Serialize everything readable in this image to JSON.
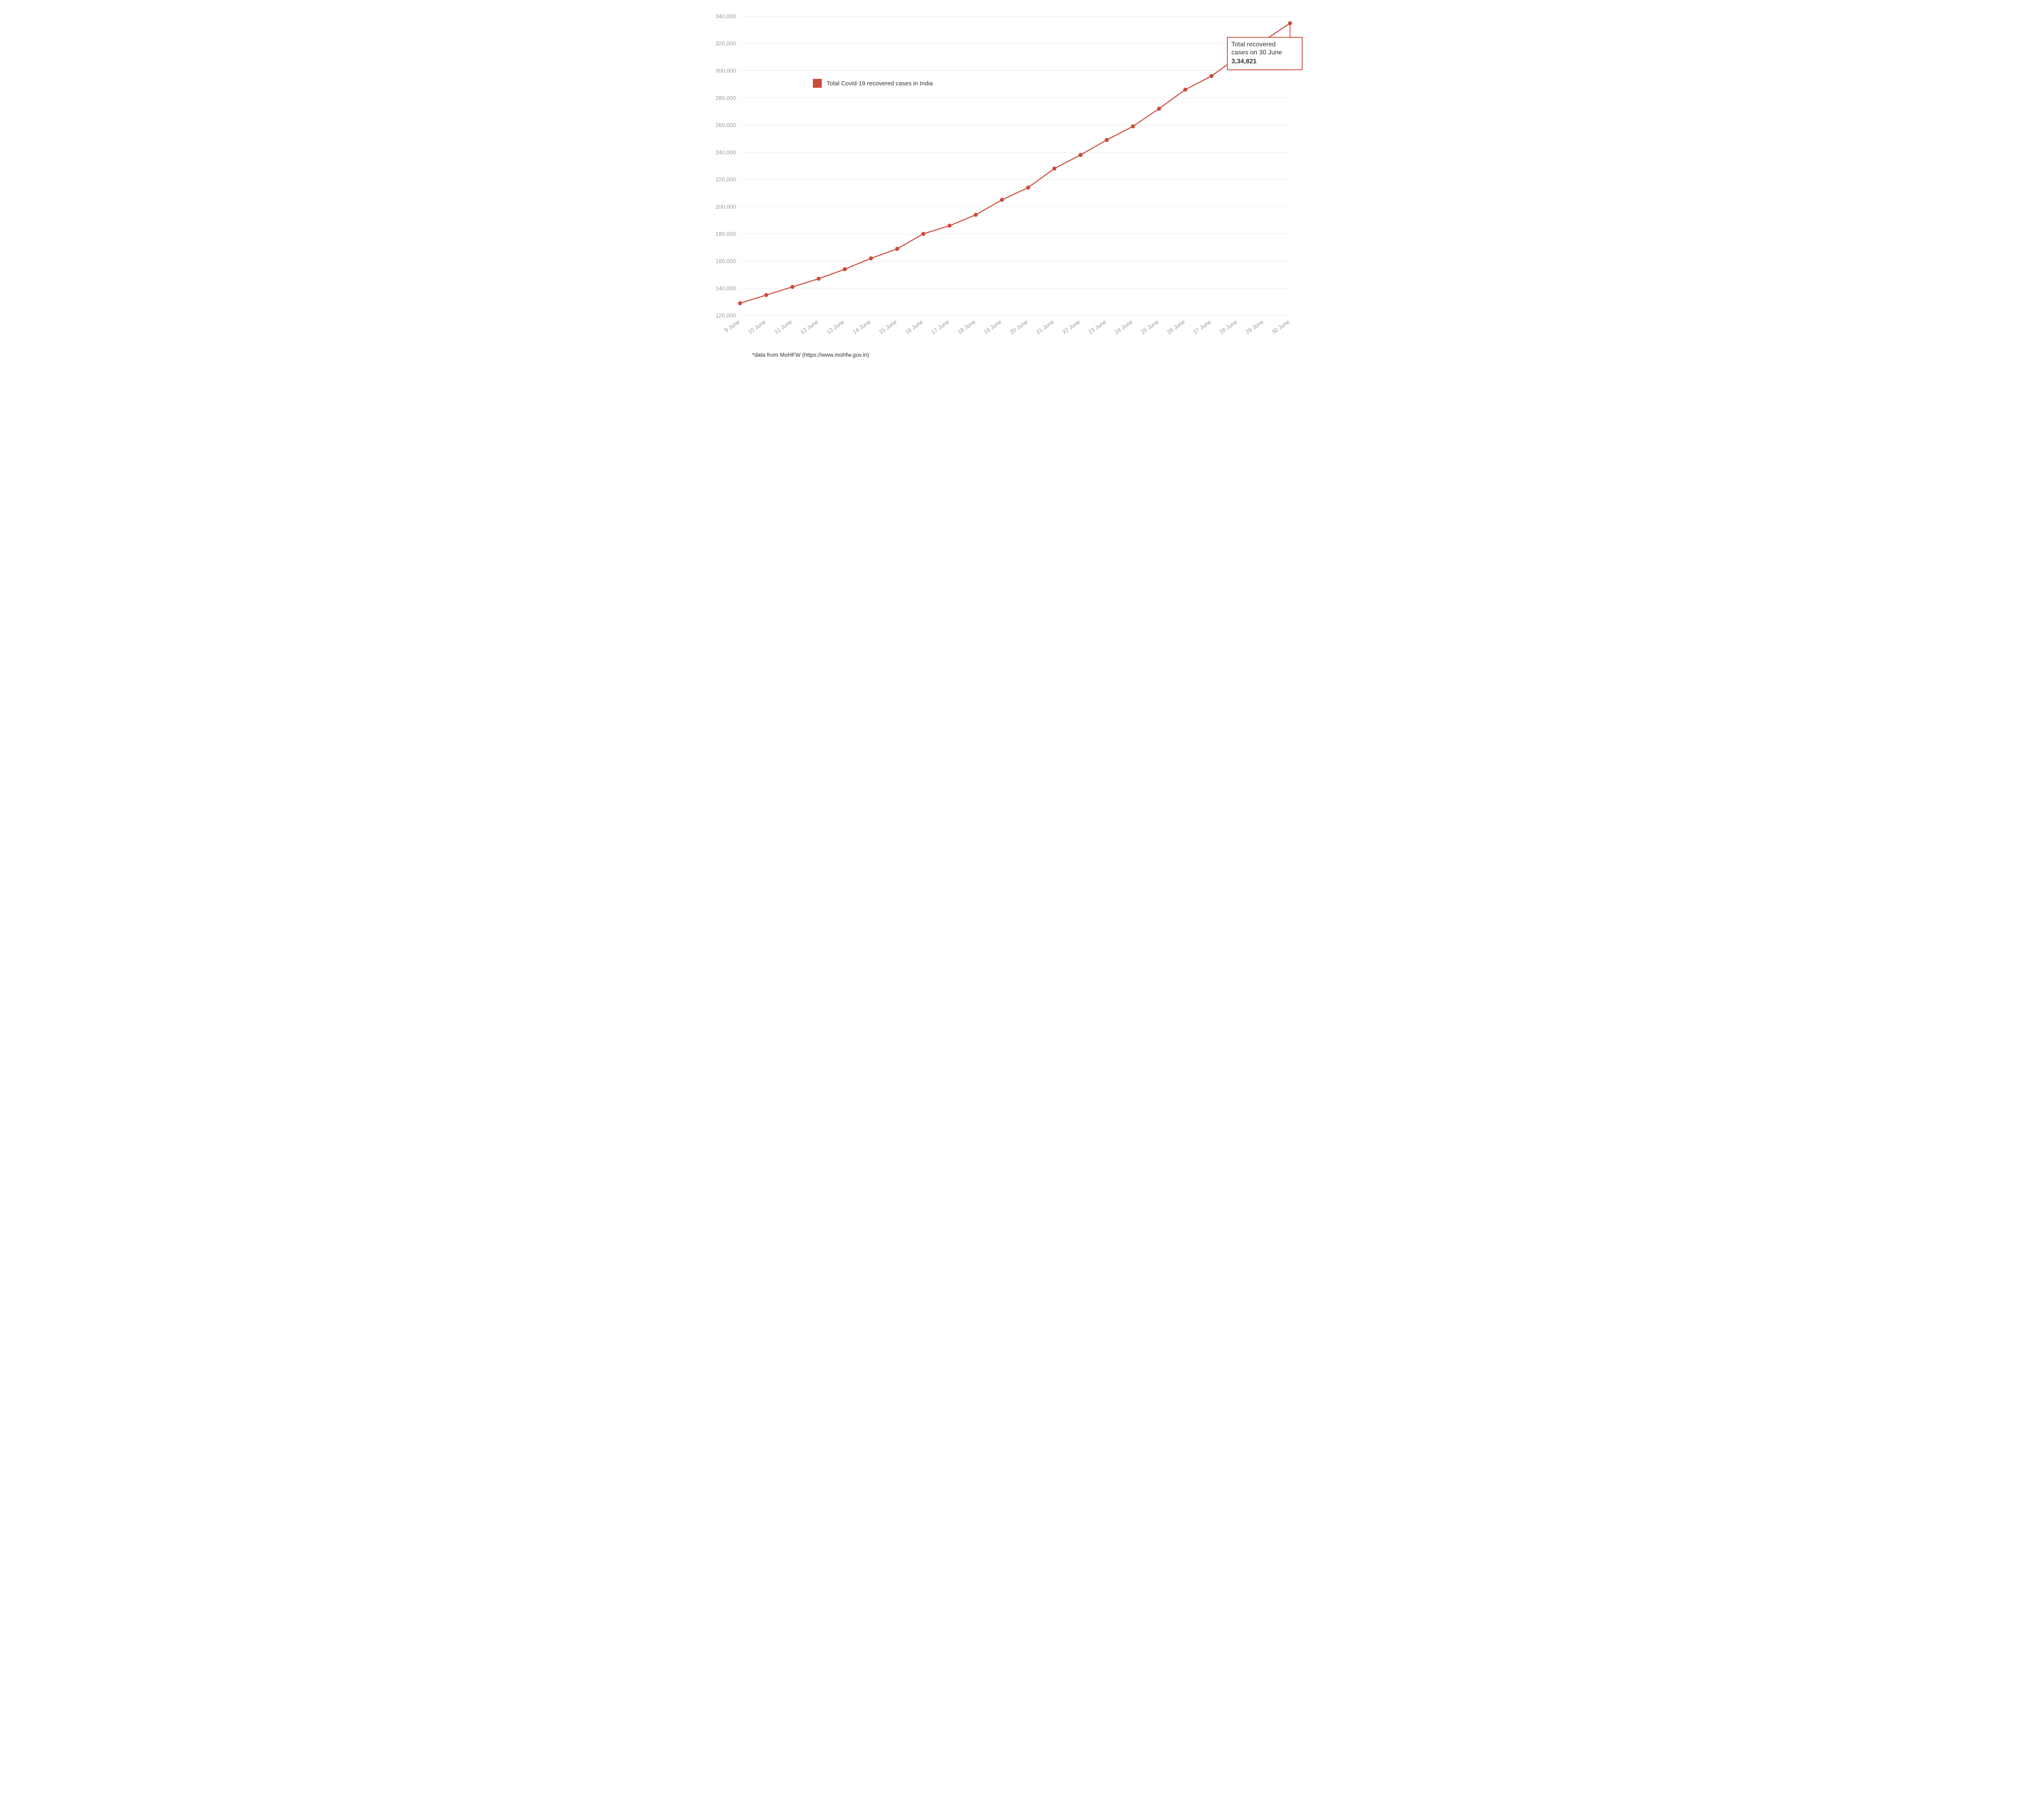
{
  "chart": {
    "type": "line",
    "background_color": "#ffffff",
    "grid_color": "#e6e6e6",
    "axis_label_color": "#9a9a9a",
    "text_color": "#333333",
    "series_color": "#cc4b3b",
    "line_width": 2.5,
    "marker_radius": 5,
    "x_labels": [
      "9 June",
      "10 June",
      "11 June",
      "12 June",
      "13 June",
      "14 June",
      "15 June",
      "16 June",
      "17 June",
      "18 June",
      "19 June",
      "20 June",
      "21 June",
      "22 June",
      "23 June",
      "24 June",
      "25 June",
      "26 June",
      "27 June",
      "28 June",
      "29 June",
      "30 June"
    ],
    "values": [
      129000,
      135000,
      141000,
      147000,
      154000,
      162000,
      169000,
      180000,
      186000,
      194000,
      205000,
      214000,
      228000,
      238000,
      249000,
      259000,
      272000,
      286000,
      296000,
      310000,
      322000,
      334821
    ],
    "y_min": 120000,
    "y_max": 340000,
    "y_tick_step": 20000,
    "y_tick_labels": [
      "120,000",
      "140,000",
      "160,000",
      "180,000",
      "200,000",
      "220,000",
      "240,000",
      "260,000",
      "280,000",
      "300,000",
      "320,000",
      "340,000"
    ],
    "legend": {
      "label": "Total Covid-19 recovered cases in India"
    },
    "callout": {
      "line1": "Total recovered",
      "line2": "cases on 30 June",
      "value": "3,34,821",
      "connector_from_index": 21
    },
    "footnote": "*data from MoHFW (https://www.mohfw.gov.in)"
  }
}
